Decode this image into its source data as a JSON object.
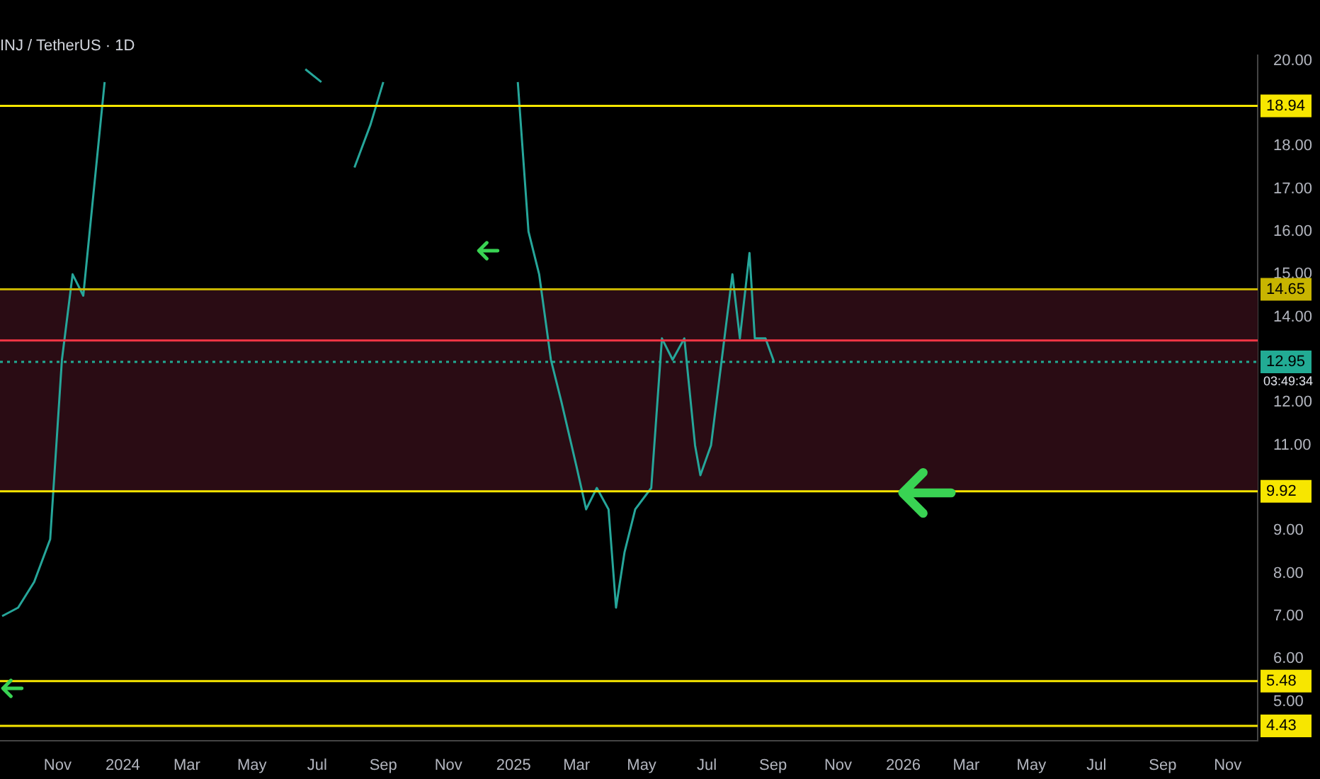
{
  "chart_data": {
    "type": "line",
    "title": "INJ / TetherUS · 1D",
    "x": [
      "2023-09-10",
      "2023-09-25",
      "2023-10-10",
      "2023-10-25",
      "2023-11-05",
      "2023-11-15",
      "2023-11-25",
      "2023-12-05",
      "2023-12-15",
      "2023-12-25",
      "2024-06-20",
      "2024-07-05",
      "2024-07-20",
      "2024-08-05",
      "2024-08-20",
      "2024-09-01",
      "2024-09-15",
      "2024-12-25",
      "2025-01-05",
      "2025-01-15",
      "2025-01-25",
      "2025-02-05",
      "2025-02-15",
      "2025-03-01",
      "2025-03-10",
      "2025-03-20",
      "2025-03-31",
      "2025-04-07",
      "2025-04-15",
      "2025-04-25",
      "2025-05-10",
      "2025-05-20",
      "2025-05-30",
      "2025-06-10",
      "2025-06-20",
      "2025-06-25",
      "2025-07-05",
      "2025-07-15",
      "2025-07-25",
      "2025-08-01",
      "2025-08-10",
      "2025-08-15",
      "2025-08-25",
      "2025-09-02"
    ],
    "series": [
      {
        "color": "#26a69a",
        "values": [
          7.0,
          7.2,
          7.8,
          8.8,
          13,
          15,
          14.5,
          17,
          19.5,
          null,
          19.8,
          19.5,
          null,
          17.5,
          18.5,
          19.5,
          null,
          null,
          19.5,
          16,
          15,
          13,
          12,
          10.5,
          9.5,
          10,
          9.5,
          7.2,
          8.5,
          9.5,
          10,
          13.5,
          13,
          13.5,
          11,
          10.3,
          11,
          13,
          15,
          13.5,
          15.5,
          13.5,
          13.5,
          12.95
        ]
      }
    ],
    "xlim": [
      "2023-09-08",
      "2026-11-29"
    ],
    "xticks": [
      {
        "value": "2023-11-01",
        "label": "Nov"
      },
      {
        "value": "2024-01-01",
        "label": "2024"
      },
      {
        "value": "2024-03-01",
        "label": "Mar"
      },
      {
        "value": "2024-05-01",
        "label": "May"
      },
      {
        "value": "2024-07-01",
        "label": "Jul"
      },
      {
        "value": "2024-09-01",
        "label": "Sep"
      },
      {
        "value": "2024-11-01",
        "label": "Nov"
      },
      {
        "value": "2025-01-01",
        "label": "2025"
      },
      {
        "value": "2025-03-01",
        "label": "Mar"
      },
      {
        "value": "2025-05-01",
        "label": "May"
      },
      {
        "value": "2025-07-01",
        "label": "Jul"
      },
      {
        "value": "2025-09-01",
        "label": "Sep"
      },
      {
        "value": "2025-11-01",
        "label": "Nov"
      },
      {
        "value": "2026-01-01",
        "label": "2026"
      },
      {
        "value": "2026-03-01",
        "label": "Mar"
      },
      {
        "value": "2026-05-01",
        "label": "May"
      },
      {
        "value": "2026-07-01",
        "label": "Jul"
      },
      {
        "value": "2026-09-01",
        "label": "Sep"
      },
      {
        "value": "2026-11-01",
        "label": "Nov"
      }
    ],
    "ylim": [
      4.09,
      20.12
    ],
    "yticks": [
      {
        "value": 5,
        "label": "5.00"
      },
      {
        "value": 6,
        "label": "6.00"
      },
      {
        "value": 7,
        "label": "7.00"
      },
      {
        "value": 8,
        "label": "8.00"
      },
      {
        "value": 9,
        "label": "9.00"
      },
      {
        "value": 11,
        "label": "11.00"
      },
      {
        "value": 12,
        "label": "12.00"
      },
      {
        "value": 14,
        "label": "14.00"
      },
      {
        "value": 15,
        "label": "15.00"
      },
      {
        "value": 16,
        "label": "16.00"
      },
      {
        "value": 17,
        "label": "17.00"
      },
      {
        "value": 18,
        "label": "18.00"
      },
      {
        "value": 20,
        "label": "20.00"
      }
    ],
    "ref_lines": [
      {
        "axis": "y",
        "value": 18.94,
        "label": "18.94",
        "color": "#f7e600"
      },
      {
        "axis": "y",
        "value": 14.65,
        "label": "14.65",
        "color": "#c8b400"
      },
      {
        "axis": "y",
        "value": 13.45,
        "color": "#f23645"
      },
      {
        "axis": "y",
        "value": 12.95,
        "label": "12.95",
        "color": "#22ab94",
        "line_style": "dotted"
      },
      {
        "axis": "y",
        "value": 9.92,
        "label": "9.92",
        "color": "#f7e600"
      },
      {
        "axis": "y",
        "value": 5.48,
        "label": "5.48",
        "color": "#f7e600"
      },
      {
        "axis": "y",
        "value": 4.43,
        "label": "4.43",
        "color": "#f7e600"
      }
    ],
    "bands": [
      {
        "axis": "y",
        "from": 9.92,
        "to": 14.65,
        "color": "#2a0c14"
      }
    ],
    "annotations": [
      "03:49:34"
    ],
    "grid": false,
    "legend": false,
    "marker": "none",
    "line_style": "solid"
  }
}
